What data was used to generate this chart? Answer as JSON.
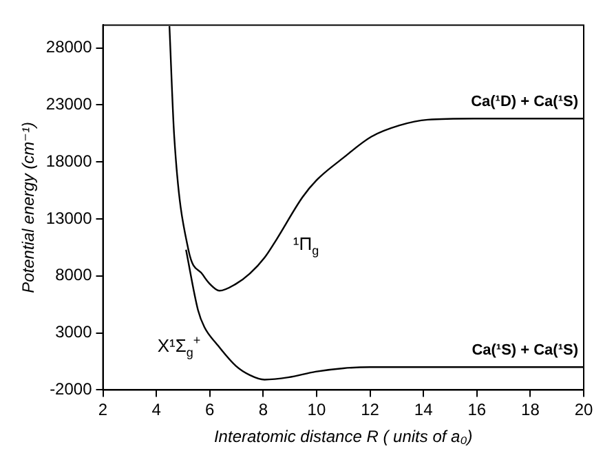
{
  "chart_data": {
    "type": "line",
    "xlabel": "Interatomic distance R ( units of a₀)",
    "ylabel": "Potential energy (cm⁻¹)",
    "xlim": [
      2,
      20
    ],
    "xticks": [
      2,
      4,
      6,
      8,
      10,
      12,
      14,
      16,
      18,
      20
    ],
    "ylim": [
      -2000,
      30000
    ],
    "yticks": [
      -2000,
      3000,
      8000,
      13000,
      18000,
      23000,
      28000
    ],
    "grid": false,
    "legend": false,
    "series": [
      {
        "name": "¹Π$_{g}$",
        "color": "#000000",
        "x": [
          4.49,
          4.67,
          5.2,
          5.74,
          6.0,
          6.36,
          6.98,
          7.5,
          8.05,
          8.5,
          9.47,
          10,
          10.97,
          12.04,
          13.1,
          14.16,
          15.9,
          18,
          20
        ],
        "values": [
          29900,
          20200,
          10300,
          8100,
          7300,
          6700,
          7300,
          8200,
          9600,
          11200,
          14900,
          16400,
          18300,
          20200,
          21200,
          21700,
          21800,
          21800,
          21800
        ]
      },
      {
        "name": "X¹Σ$_{g}$$^{+}$",
        "color": "#000000",
        "x": [
          5.11,
          5.56,
          5.8,
          6.27,
          6.98,
          7.5,
          8.05,
          8.94,
          9.96,
          11,
          12,
          13,
          14,
          16,
          18,
          20
        ],
        "values": [
          10300,
          5000,
          3500,
          2000,
          100,
          -700,
          -1100,
          -900,
          -400,
          -100,
          0,
          0,
          0,
          0,
          0,
          0
        ]
      }
    ],
    "annotations": [
      "Ca(¹D) + Ca(¹S)",
      "Ca(¹S) + Ca(¹S)"
    ]
  }
}
